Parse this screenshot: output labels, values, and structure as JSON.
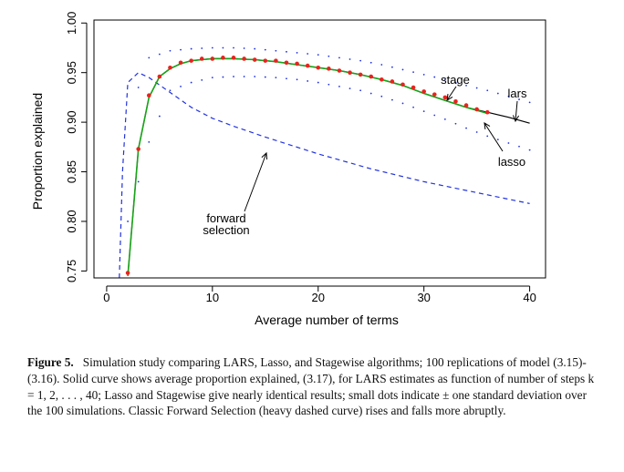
{
  "chart_data": {
    "type": "line",
    "xlabel": "Average number of terms",
    "ylabel": "Proportion explained",
    "xlim": [
      -1.2,
      41.5
    ],
    "ylim": [
      0.743,
      1.003
    ],
    "xticks": [
      0,
      10,
      20,
      30,
      40
    ],
    "xtick_labels": [
      "0",
      "10",
      "20",
      "30",
      "40"
    ],
    "yticks": [
      0.75,
      0.8,
      0.85,
      0.9,
      0.95,
      1.0
    ],
    "ytick_labels": [
      "0.75",
      "0.80",
      "0.85",
      "0.90",
      "0.95",
      "1.00"
    ],
    "grid": false,
    "legend": "none",
    "series": [
      {
        "name": "lars",
        "style": "solid",
        "color": "#000000",
        "x": [
          2,
          3,
          4,
          5,
          6,
          7,
          8,
          9,
          10,
          11,
          12,
          14,
          16,
          18,
          20,
          22,
          24,
          26,
          28,
          30,
          32,
          34,
          36,
          38,
          40
        ],
        "y": [
          0.745,
          0.873,
          0.925,
          0.946,
          0.954,
          0.959,
          0.962,
          0.963,
          0.964,
          0.964,
          0.964,
          0.963,
          0.961,
          0.958,
          0.955,
          0.952,
          0.948,
          0.943,
          0.937,
          0.929,
          0.922,
          0.915,
          0.91,
          0.905,
          0.899
        ]
      },
      {
        "name": "stage",
        "style": "solid",
        "color": "#19a319",
        "x": [
          2,
          3,
          4,
          5,
          6,
          7,
          8,
          9,
          10,
          11,
          12,
          14,
          16,
          18,
          20,
          22,
          24,
          26,
          28,
          30,
          32,
          34,
          36
        ],
        "y": [
          0.745,
          0.873,
          0.925,
          0.946,
          0.954,
          0.959,
          0.962,
          0.963,
          0.964,
          0.964,
          0.964,
          0.963,
          0.961,
          0.958,
          0.955,
          0.952,
          0.948,
          0.943,
          0.937,
          0.929,
          0.922,
          0.915,
          0.909
        ]
      },
      {
        "name": "lasso",
        "style": "points",
        "color": "#e8231e",
        "x": [
          2,
          3,
          4,
          5,
          6,
          7,
          8,
          9,
          10,
          11,
          12,
          13,
          14,
          15,
          16,
          17,
          18,
          19,
          20,
          21,
          22,
          23,
          24,
          25,
          26,
          27,
          28,
          29,
          30,
          31,
          32,
          33,
          34,
          35,
          36
        ],
        "y": [
          0.748,
          0.873,
          0.927,
          0.946,
          0.955,
          0.96,
          0.962,
          0.964,
          0.964,
          0.965,
          0.965,
          0.964,
          0.963,
          0.962,
          0.962,
          0.96,
          0.959,
          0.957,
          0.955,
          0.954,
          0.952,
          0.95,
          0.948,
          0.946,
          0.943,
          0.941,
          0.938,
          0.935,
          0.931,
          0.928,
          0.925,
          0.921,
          0.917,
          0.913,
          0.91
        ]
      },
      {
        "name": "forward selection",
        "style": "dashed",
        "color": "#2233dd",
        "x": [
          1.2,
          1.5,
          2.0,
          3.0,
          4.0,
          6.0,
          8.0,
          10.0,
          12.0,
          15.0,
          20.0,
          25.0,
          30.0,
          35.0,
          40.0
        ],
        "y": [
          0.743,
          0.85,
          0.94,
          0.95,
          0.945,
          0.93,
          0.915,
          0.904,
          0.896,
          0.885,
          0.868,
          0.853,
          0.84,
          0.829,
          0.818
        ]
      },
      {
        "name": "+1 sd",
        "style": "dotted",
        "color": "#2233dd",
        "x": [
          3,
          4,
          6,
          8,
          10,
          12,
          14,
          16,
          18,
          20,
          22,
          24,
          26,
          28,
          30,
          32,
          34,
          36,
          38,
          40
        ],
        "y": [
          0.935,
          0.965,
          0.972,
          0.974,
          0.975,
          0.975,
          0.974,
          0.972,
          0.97,
          0.968,
          0.965,
          0.962,
          0.958,
          0.953,
          0.948,
          0.943,
          0.937,
          0.932,
          0.926,
          0.92
        ]
      },
      {
        "name": "-1 sd",
        "style": "dotted",
        "color": "#2233dd",
        "x": [
          2,
          4,
          6,
          8,
          10,
          12,
          14,
          16,
          18,
          20,
          22,
          24,
          26,
          28,
          30,
          32,
          34,
          36,
          38,
          40
        ],
        "y": [
          0.8,
          0.88,
          0.932,
          0.94,
          0.945,
          0.946,
          0.946,
          0.945,
          0.943,
          0.94,
          0.936,
          0.932,
          0.926,
          0.919,
          0.911,
          0.903,
          0.894,
          0.886,
          0.879,
          0.872
        ]
      }
    ],
    "annotations": [
      {
        "text": "stage",
        "target_x": 31.5,
        "target_y": 0.926
      },
      {
        "text": "lars",
        "target_x": 38.3,
        "target_y": 0.906
      },
      {
        "text": "lasso",
        "target_x": 35.5,
        "target_y": 0.911
      },
      {
        "text_lines": [
          "forward",
          "selection"
        ],
        "target_x": 14.7,
        "target_y": 0.878
      }
    ]
  },
  "caption": {
    "label": "Figure 5.",
    "text": "Simulation study comparing LARS, Lasso, and Stagewise algorithms; 100 replications of model (3.15)-(3.16). Solid curve shows average proportion explained, (3.17), for LARS estimates as function of number of steps k = 1, 2, . . . , 40; Lasso and Stagewise give nearly identical results; small dots indicate ± one standard deviation over the 100 simulations. Classic Forward Selection (heavy dashed curve) rises and falls more abruptly."
  }
}
